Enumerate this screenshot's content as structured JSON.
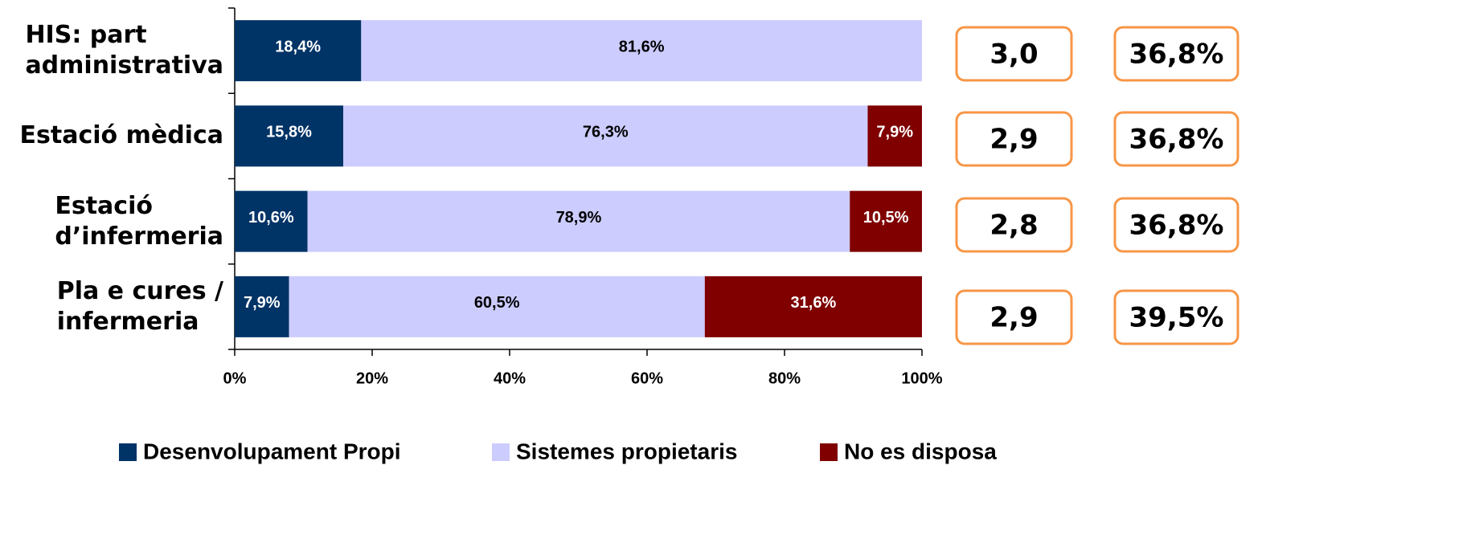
{
  "chart_data": {
    "type": "stacked_barh",
    "categories": [
      "HIS: part\nadministrativa",
      "Estació mèdica",
      "Estació\nd’infermeria",
      "Pla e cures /\ninfermeria"
    ],
    "series": [
      {
        "name": "Desenvolupament Propi",
        "color": "#003366",
        "values": [
          18.4,
          15.8,
          10.6,
          7.9
        ],
        "value_labels": [
          "18,4%",
          "15,8%",
          "10,6%",
          "7,9%"
        ]
      },
      {
        "name": "Sistemes propietaris",
        "color": "#ccccff",
        "values": [
          81.6,
          76.3,
          78.9,
          60.5
        ],
        "value_labels": [
          "81,6%",
          "76,3%",
          "78,9%",
          "60,5%"
        ]
      },
      {
        "name": "No es disposa",
        "color": "#800000",
        "values": [
          null,
          7.9,
          10.5,
          31.6
        ],
        "value_labels": [
          null,
          "7,9%",
          "10,5%",
          "31,6%"
        ]
      }
    ],
    "xlim": [
      0,
      100
    ],
    "xticks": [
      {
        "value": 0,
        "label": "0%"
      },
      {
        "value": 20,
        "label": "20%"
      },
      {
        "value": 40,
        "label": "40%"
      },
      {
        "value": 60,
        "label": "60%"
      },
      {
        "value": 80,
        "label": "80%"
      },
      {
        "value": 100,
        "label": "100%"
      }
    ],
    "legend": "bottom"
  },
  "side_boxes": {
    "scores": {
      "values": [
        3.0,
        2.9,
        2.8,
        2.9
      ],
      "labels": [
        "3,0",
        "2,9",
        "2,8",
        "2,9"
      ]
    },
    "shares": {
      "values": [
        36.8,
        36.8,
        36.8,
        39.5
      ],
      "labels": [
        "36,8%",
        "36,8%",
        "36,8%",
        "39,5%"
      ]
    }
  }
}
